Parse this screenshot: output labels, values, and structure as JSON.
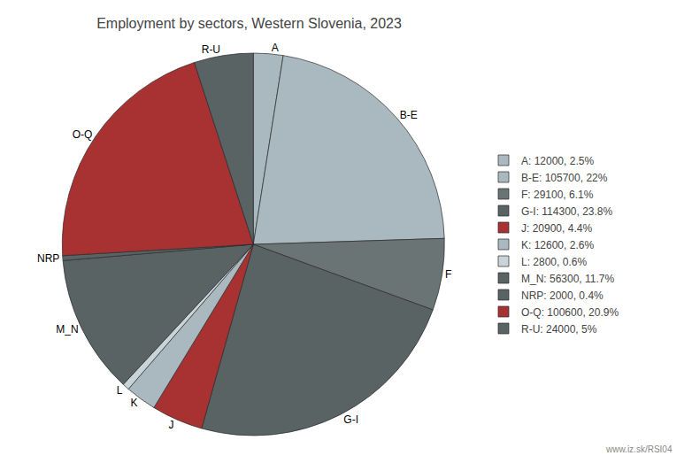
{
  "chart_data": {
    "type": "pie",
    "title": "Employment by sectors, Western Slovenia, 2023",
    "categories": [
      "A",
      "B-E",
      "F",
      "G-I",
      "J",
      "K",
      "L",
      "M_N",
      "NRP",
      "O-Q",
      "R-U"
    ],
    "values": [
      12000,
      105700,
      29100,
      114300,
      20900,
      12600,
      2800,
      56300,
      2000,
      100600,
      24000
    ],
    "colors": [
      "#aab8c0",
      "#aab8c0",
      "#6b7475",
      "#5a6364",
      "#a83232",
      "#aab8c0",
      "#c8d4d8",
      "#5a6364",
      "#5a6364",
      "#a83232",
      "#5a6364"
    ],
    "legend_labels": [
      "A: 12000, 2.5%",
      "B-E: 105700, 22%",
      "F: 29100, 6.1%",
      "G-I: 114300, 23.8%",
      "J: 20900, 4.4%",
      "K: 12600, 2.6%",
      "L: 2800, 0.6%",
      "M_N: 56300, 11.7%",
      "NRP: 2000, 0.4%",
      "O-Q: 100600, 20.9%",
      "R-U: 24000, 5%"
    ],
    "annotations": [
      "www.iz.sk/RSI04"
    ]
  }
}
